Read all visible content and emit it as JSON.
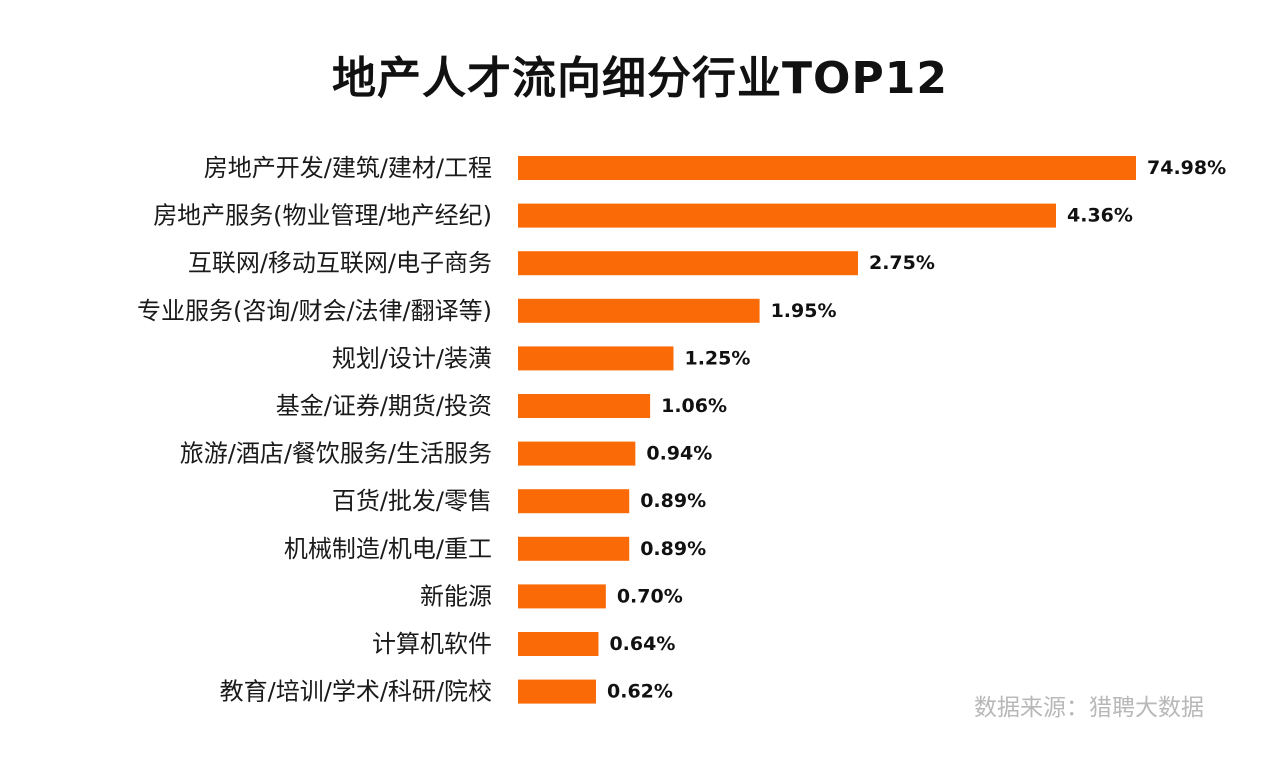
{
  "source_note": "数据来源：猎聘大数据",
  "colors": {
    "bar": "#fa6a06",
    "label": "#1a1a1a",
    "value": "#111111",
    "source": "#b8b8b8"
  },
  "chart_data": {
    "type": "bar",
    "orientation": "horizontal",
    "title": "地产人才流向细分行业TOP12",
    "xlabel": "",
    "ylabel": "",
    "grid": false,
    "legend": "none",
    "unit": "%",
    "categories": [
      "房地产开发/建筑/建材/工程",
      "房地产服务(物业管理/地产经纪)",
      "互联网/移动互联网/电子商务",
      "专业服务(咨询/财会/法律/翻译等)",
      "规划/设计/装潢",
      "基金/证券/期货/投资",
      "旅游/酒店/餐饮服务/生活服务",
      "百货/批发/零售",
      "机械制造/机电/重工",
      "新能源",
      "计算机软件",
      "教育/培训/学术/科研/院校"
    ],
    "values": [
      74.98,
      4.36,
      2.75,
      1.95,
      1.25,
      1.06,
      0.94,
      0.89,
      0.89,
      0.7,
      0.64,
      0.62
    ],
    "value_labels": [
      "74.98%",
      "4.36%",
      "2.75%",
      "1.95%",
      "1.25%",
      "1.06%",
      "0.94%",
      "0.89%",
      "0.89%",
      "0.70%",
      "0.64%",
      "0.62%"
    ]
  }
}
